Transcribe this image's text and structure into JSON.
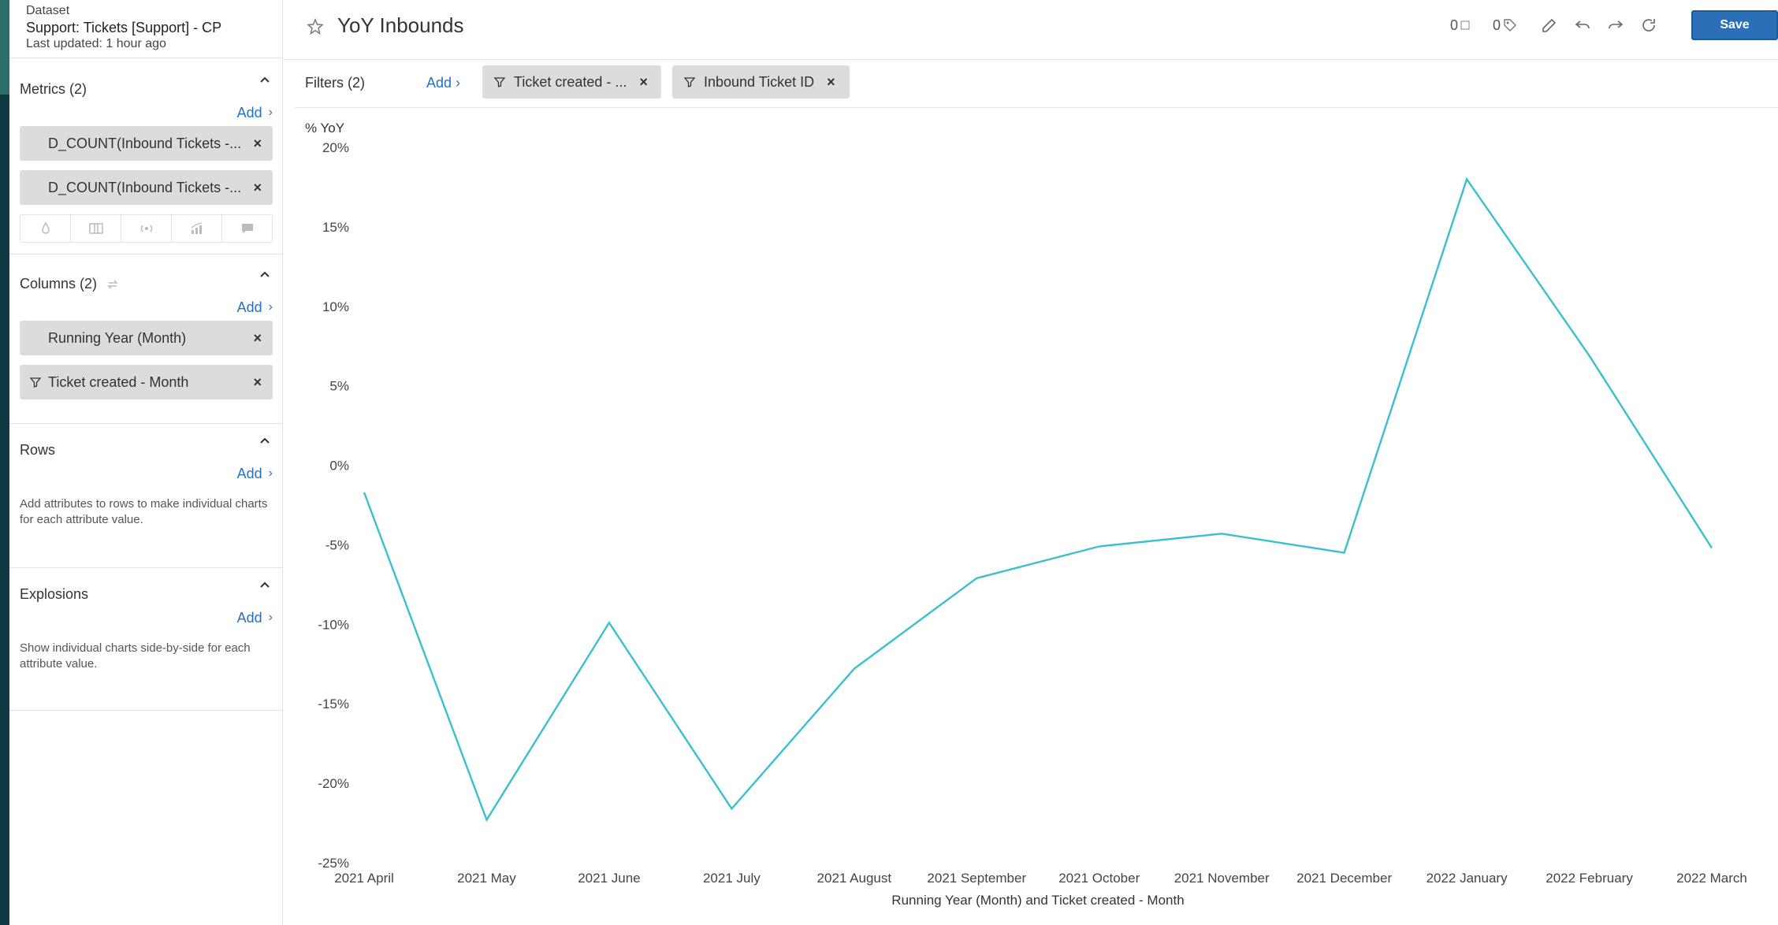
{
  "dataset": {
    "label": "Dataset",
    "name": "Support: Tickets [Support] - CP",
    "updated": "Last updated: 1 hour ago"
  },
  "sidebar": {
    "metrics": {
      "title": "Metrics (2)",
      "add": "Add",
      "items": [
        "D_COUNT(Inbound Tickets -...",
        "D_COUNT(Inbound Tickets -..."
      ]
    },
    "columns": {
      "title": "Columns (2)",
      "add": "Add",
      "items": [
        "Running Year (Month)",
        "Ticket created - Month"
      ]
    },
    "rows": {
      "title": "Rows",
      "add": "Add",
      "help": "Add attributes to rows to make individual charts for each attribute value."
    },
    "explosions": {
      "title": "Explosions",
      "add": "Add",
      "help": "Show individual charts side-by-side for each attribute value."
    }
  },
  "header": {
    "title": "YoY Inbounds",
    "comments_count": "0",
    "tags_count": "0",
    "save_label": "Save"
  },
  "filters": {
    "label": "Filters (2)",
    "add": "Add",
    "items": [
      "Ticket created - ...",
      "Inbound Ticket ID"
    ]
  },
  "colors": {
    "line": "#3cbfcc",
    "accent": "#2a6fb8"
  },
  "chart_data": {
    "type": "line",
    "ylabel": "% YoY",
    "xlabel": "Running Year (Month) and Ticket created - Month",
    "ylim": [
      -25,
      20
    ],
    "yticks": [
      "20%",
      "15%",
      "10%",
      "5%",
      "0%",
      "-5%",
      "-10%",
      "-15%",
      "-20%",
      "-25%"
    ],
    "ytick_values": [
      20,
      15,
      10,
      5,
      0,
      -5,
      -10,
      -15,
      -20,
      -25
    ],
    "categories": [
      "2021 April",
      "2021 May",
      "2021 June",
      "2021 July",
      "2021 August",
      "2021 September",
      "2021 October",
      "2021 November",
      "2021 December",
      "2022 January",
      "2022 February",
      "2022 March"
    ],
    "series": [
      {
        "values": [
          -1.7,
          -22.3,
          -9.9,
          -21.6,
          -12.8,
          -7.1,
          -5.1,
          -4.3,
          -5.5,
          18.0,
          6.9,
          -5.2
        ]
      }
    ],
    "grid": false,
    "legend": "none"
  }
}
